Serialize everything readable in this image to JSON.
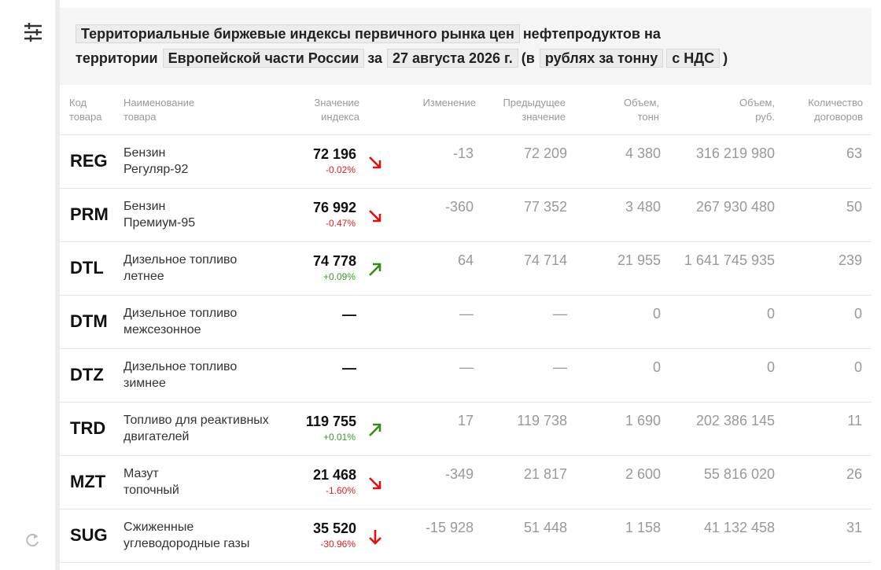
{
  "header": {
    "title_parts": [
      {
        "text": "Территориальные биржевые индексы первичного рынка цен",
        "chip": true
      },
      {
        "text": "нефтепродуктов на территории",
        "chip": false
      },
      {
        "text": "Европейской части России",
        "chip": true
      },
      {
        "text": "за",
        "chip": false
      },
      {
        "text": "27 августа 2026 г.",
        "chip": true
      },
      {
        "text": "(в",
        "chip": false
      },
      {
        "text": "рублях за тонну",
        "chip": true
      },
      {
        "text": "с НДС",
        "chip": true
      },
      {
        "text": ")",
        "chip": false
      }
    ]
  },
  "table": {
    "columns": [
      [
        "Код",
        "товара"
      ],
      [
        "Наименование",
        "товара"
      ],
      [
        "Значение",
        "индекса"
      ],
      [
        "Изменение"
      ],
      [
        "Предыдущее",
        "значение"
      ],
      [
        "Объем,",
        "тонн"
      ],
      [
        "Объем,",
        "руб."
      ],
      [
        "Количество",
        "договоров"
      ]
    ],
    "rows": [
      {
        "code": "REG",
        "name": [
          "Бензин",
          "Регуляр-92"
        ],
        "index": "72 196",
        "pct": "-0.02%",
        "trend": "down",
        "change": "-13",
        "prev": "72 209",
        "tons": "4 380",
        "rub": "316 219 980",
        "count": "63"
      },
      {
        "code": "PRM",
        "name": [
          "Бензин",
          "Премиум-95"
        ],
        "index": "76 992",
        "pct": "-0.47%",
        "trend": "down",
        "change": "-360",
        "prev": "77 352",
        "tons": "3 480",
        "rub": "267 930 480",
        "count": "50"
      },
      {
        "code": "DTL",
        "name": [
          "Дизельное топливо",
          "летнее"
        ],
        "index": "74 778",
        "pct": "+0.09%",
        "trend": "up",
        "change": "64",
        "prev": "74 714",
        "tons": "21 955",
        "rub": "1 641 745 935",
        "count": "239"
      },
      {
        "code": "DTM",
        "name": [
          "Дизельное топливо",
          "межсезонное"
        ],
        "index": "—",
        "pct": null,
        "trend": null,
        "change": "—",
        "prev": "—",
        "tons": "0",
        "rub": "0",
        "count": "0"
      },
      {
        "code": "DTZ",
        "name": [
          "Дизельное топливо",
          "зимнее"
        ],
        "index": "—",
        "pct": null,
        "trend": null,
        "change": "—",
        "prev": "—",
        "tons": "0",
        "rub": "0",
        "count": "0"
      },
      {
        "code": "TRD",
        "name": [
          "Топливо для реактивных",
          "двигателей"
        ],
        "index": "119 755",
        "pct": "+0.01%",
        "trend": "up",
        "change": "17",
        "prev": "119 738",
        "tons": "1 690",
        "rub": "202 386 145",
        "count": "11"
      },
      {
        "code": "MZT",
        "name": [
          "Мазут",
          "топочный"
        ],
        "index": "21 468",
        "pct": "-1.60%",
        "trend": "down",
        "change": "-349",
        "prev": "21 817",
        "tons": "2 600",
        "rub": "55 816 020",
        "count": "26"
      },
      {
        "code": "SUG",
        "name": [
          "Сжиженные",
          "углеводородные газы"
        ],
        "index": "35 520",
        "pct": "-30.96%",
        "trend": "down-sharp",
        "change": "-15 928",
        "prev": "51 448",
        "tons": "1 158",
        "rub": "41 132 458",
        "count": "31"
      }
    ]
  }
}
